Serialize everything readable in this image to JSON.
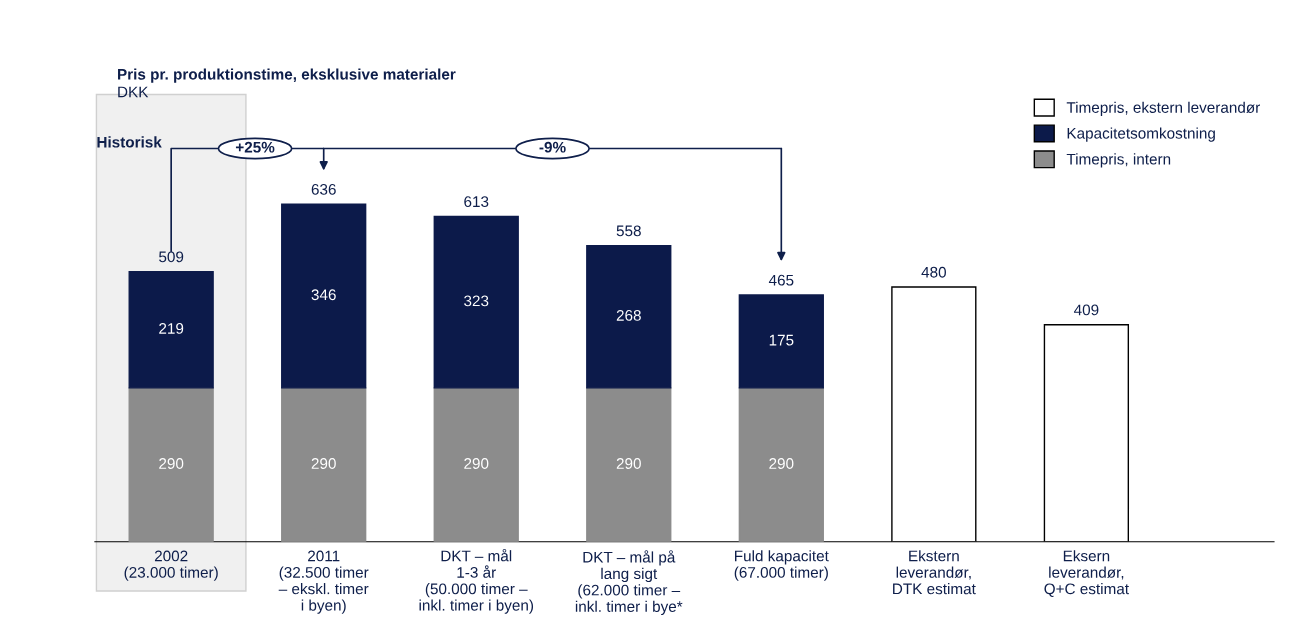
{
  "chart_data": {
    "type": "bar",
    "title": "Pris pr. produktionstime, eksklusive materialer",
    "subtitle": "DKK",
    "categories": [
      "2002\n(23.000 timer)",
      "2011\n(32.500 timer\n– ekskl. timer\ni byen)",
      "DKT – mål\n1-3 år\n(50.000 timer –\ninkl. timer i byen)",
      "DKT – mål på\nlang sigt\n(62.000 timer –\ninkl. timer i bye*",
      "Fuld kapacitet\n(67.000 timer)",
      "Ekstern\nleverandør,\nDTK estimat",
      "Eksern\nleverandør,\nQ+C estimat"
    ],
    "stacked": true,
    "series": [
      {
        "name": "Timepris, intern",
        "color": "#8c8c8c",
        "values": [
          290,
          290,
          290,
          290,
          290,
          null,
          null
        ]
      },
      {
        "name": "Kapacitetsomkostning",
        "color": "#0c1a4a",
        "values": [
          219,
          346,
          323,
          268,
          175,
          null,
          null
        ]
      },
      {
        "name": "Timepris, ekstern leverandør",
        "color": "#ffffff",
        "values": [
          null,
          null,
          null,
          null,
          null,
          480,
          409
        ]
      }
    ],
    "data_labels": true,
    "totals": [
      "509",
      "636",
      "613",
      "558",
      "465",
      null,
      null
    ],
    "annotations": [
      "Historisk",
      "+25%",
      "-9%"
    ],
    "legend": "top right",
    "grid": false
  }
}
